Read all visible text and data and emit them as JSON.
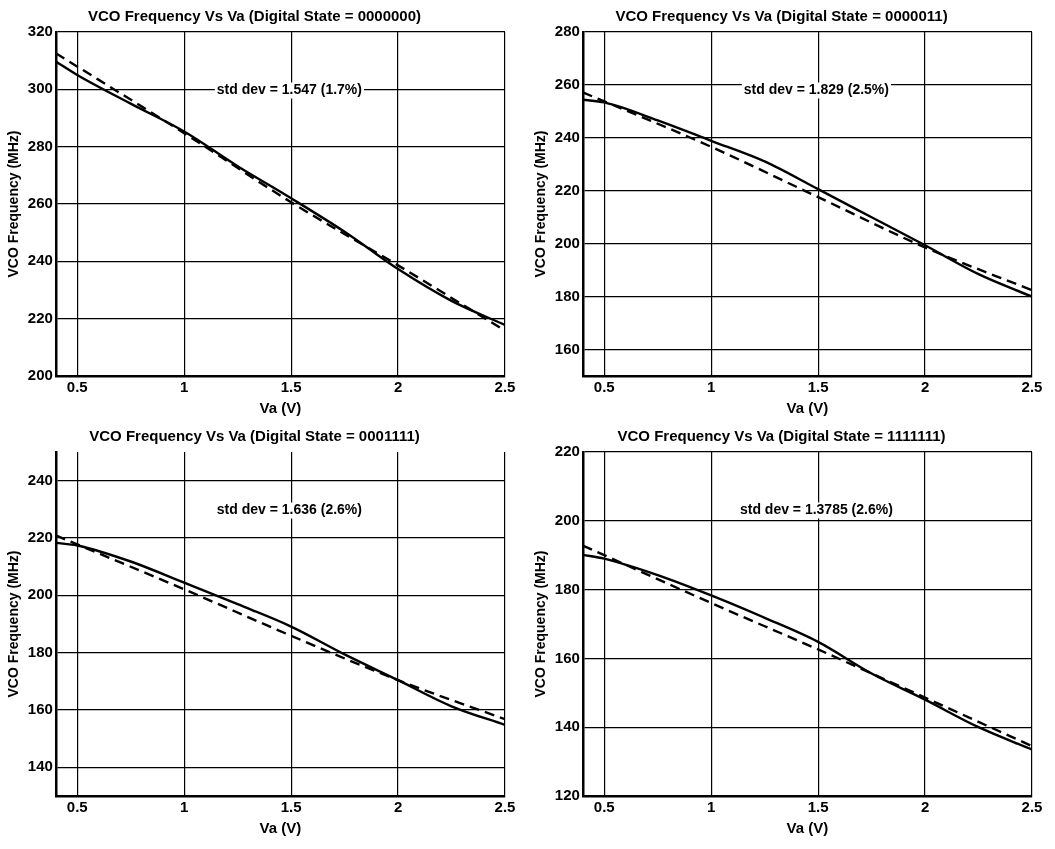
{
  "chart_data": [
    {
      "type": "line",
      "title": "VCO Frequency Vs Va (Digital State = 0000000)",
      "xlabel": "Va (V)",
      "ylabel": "VCO Frequency (MHz)",
      "annotations": [
        "std dev = 1.547 (1.7%)"
      ],
      "xlim": [
        0.4,
        2.5
      ],
      "xticks": [
        0.5,
        1,
        1.5,
        2,
        2.5
      ],
      "ylim": [
        200,
        320
      ],
      "yticks": [
        200,
        220,
        240,
        260,
        280,
        300,
        320
      ],
      "grid": true,
      "series": [
        {
          "color": "#000000",
          "line_style": "solid",
          "x": [
            0.4,
            0.5,
            0.75,
            1,
            1.25,
            1.5,
            1.75,
            2,
            2.25,
            2.5
          ],
          "values": [
            309.7,
            305,
            295,
            285.3,
            273.2,
            262,
            250.3,
            237.3,
            226.2,
            217.8
          ]
        },
        {
          "color": "#000000",
          "line_style": "dashed",
          "x": [
            0.4,
            1,
            1.5,
            2,
            2.5
          ],
          "values": [
            312.6,
            284.7,
            260.6,
            238.6,
            215.8
          ]
        }
      ]
    },
    {
      "type": "line",
      "title": "VCO Frequency Vs Va (Digital State = 0000011)",
      "xlabel": "Va (V)",
      "ylabel": "VCO Frequency (MHz)",
      "annotations": [
        "std dev = 1.829 (2.5%)"
      ],
      "xlim": [
        0.4,
        2.5
      ],
      "xticks": [
        0.5,
        1,
        1.5,
        2,
        2.5
      ],
      "ylim": [
        150,
        280
      ],
      "yticks": [
        160,
        180,
        200,
        220,
        240,
        260,
        280
      ],
      "grid": true,
      "series": [
        {
          "color": "#000000",
          "line_style": "solid",
          "x": [
            0.4,
            0.5,
            0.75,
            1,
            1.25,
            1.5,
            1.75,
            2,
            2.25,
            2.5
          ],
          "values": [
            254.4,
            253.4,
            246.6,
            238.9,
            231.1,
            220.6,
            210,
            199.4,
            188.5,
            180
          ]
        },
        {
          "color": "#000000",
          "line_style": "dashed",
          "x": [
            0.4,
            1,
            1.5,
            2,
            2.5
          ],
          "values": [
            257.2,
            236.6,
            217.6,
            198.6,
            182.4
          ]
        }
      ]
    },
    {
      "type": "line",
      "title": "VCO Frequency Vs Va (Digital State = 0001111)",
      "xlabel": "Va (V)",
      "ylabel": "VCO Frequency (MHz)",
      "annotations": [
        "std dev = 1.636 (2.6%)"
      ],
      "xlim": [
        0.4,
        2.5
      ],
      "xticks": [
        0.5,
        1,
        1.5,
        2,
        2.5
      ],
      "ylim": [
        130,
        250
      ],
      "yticks": [
        140,
        160,
        180,
        200,
        220,
        240
      ],
      "grid": true,
      "series": [
        {
          "color": "#000000",
          "line_style": "solid",
          "x": [
            0.4,
            0.5,
            0.75,
            1,
            1.25,
            1.5,
            1.75,
            2,
            2.25,
            2.5
          ],
          "values": [
            218.3,
            217.4,
            211.8,
            204.4,
            196.9,
            189.1,
            179.4,
            170.4,
            161.3,
            154.8
          ]
        },
        {
          "color": "#000000",
          "line_style": "dashed",
          "x": [
            0.4,
            1,
            1.5,
            2,
            2.5
          ],
          "values": [
            220.9,
            202.1,
            185.9,
            170.4,
            156.8
          ]
        }
      ]
    },
    {
      "type": "line",
      "title": "VCO Frequency Vs Va (Digital State = 1111111)",
      "xlabel": "Va (V)",
      "ylabel": "VCO Frequency (MHz)",
      "annotations": [
        "std dev = 1.3785 (2.6%)"
      ],
      "xlim": [
        0.4,
        2.5
      ],
      "xticks": [
        0.5,
        1,
        1.5,
        2,
        2.5
      ],
      "ylim": [
        120,
        220
      ],
      "yticks": [
        120,
        140,
        160,
        180,
        200,
        220
      ],
      "grid": true,
      "series": [
        {
          "color": "#000000",
          "line_style": "solid",
          "x": [
            0.4,
            0.5,
            0.75,
            1,
            1.25,
            1.5,
            1.75,
            2,
            2.25,
            2.5
          ],
          "values": [
            190.1,
            189,
            184.2,
            178.3,
            171.8,
            164.8,
            155.6,
            148,
            140,
            133.5
          ]
        },
        {
          "color": "#000000",
          "line_style": "dashed",
          "x": [
            0.4,
            1,
            1.5,
            2,
            2.5
          ],
          "values": [
            192.8,
            176.1,
            162.6,
            148.6,
            134.5
          ]
        }
      ]
    }
  ]
}
